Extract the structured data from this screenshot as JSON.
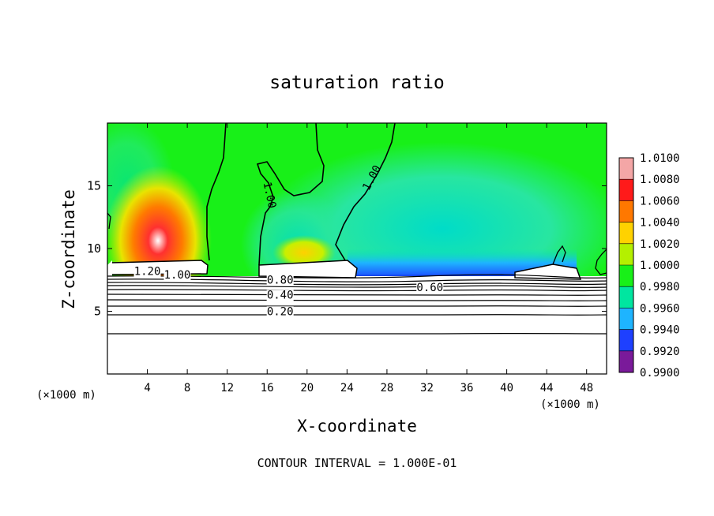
{
  "chart_data": {
    "type": "heatmap",
    "title": "saturation ratio",
    "xlabel": "X-coordinate",
    "ylabel": "Z-coordinate",
    "x_unit_left": "(×1000 m)",
    "x_unit_right": "(×1000 m)",
    "footer": "CONTOUR INTERVAL = 1.000E-01",
    "xlim": [
      0,
      50
    ],
    "ylim": [
      0,
      20
    ],
    "x_ticks": [
      4,
      8,
      12,
      16,
      20,
      24,
      28,
      32,
      36,
      40,
      44,
      48
    ],
    "y_ticks": [
      5,
      10,
      15
    ],
    "colorbar": {
      "range": [
        0.99,
        1.01
      ],
      "labels": [
        "1.0100",
        "1.0080",
        "1.0060",
        "1.0040",
        "1.0020",
        "1.0000",
        "0.9980",
        "0.9960",
        "0.9940",
        "0.9920",
        "0.9900"
      ],
      "colors": [
        "#f4a6a6",
        "#ee3a2a",
        "#ff2a00",
        "#ff7800",
        "#ffd200",
        "#c8f000",
        "#2ee62e",
        "#00e6b4",
        "#1eb4ff",
        "#1e64ff",
        "#0000c8",
        "#5a0096",
        "#7a1a9a"
      ]
    },
    "contour_labels": [
      {
        "text": "1.20",
        "x": 4.0,
        "y": 7.9
      },
      {
        "text": "1.00",
        "x": 7.0,
        "y": 7.6
      },
      {
        "text": "0.80",
        "x": 17.3,
        "y": 7.2
      },
      {
        "text": "0.40",
        "x": 17.3,
        "y": 6.0
      },
      {
        "text": "0.20",
        "x": 17.3,
        "y": 4.7
      },
      {
        "text": "0.60",
        "x": 32.3,
        "y": 6.6
      },
      {
        "text": "1.00",
        "x": 15.9,
        "y": 14.2
      },
      {
        "text": "1.00",
        "x": 26.8,
        "y": 15.5
      }
    ]
  }
}
